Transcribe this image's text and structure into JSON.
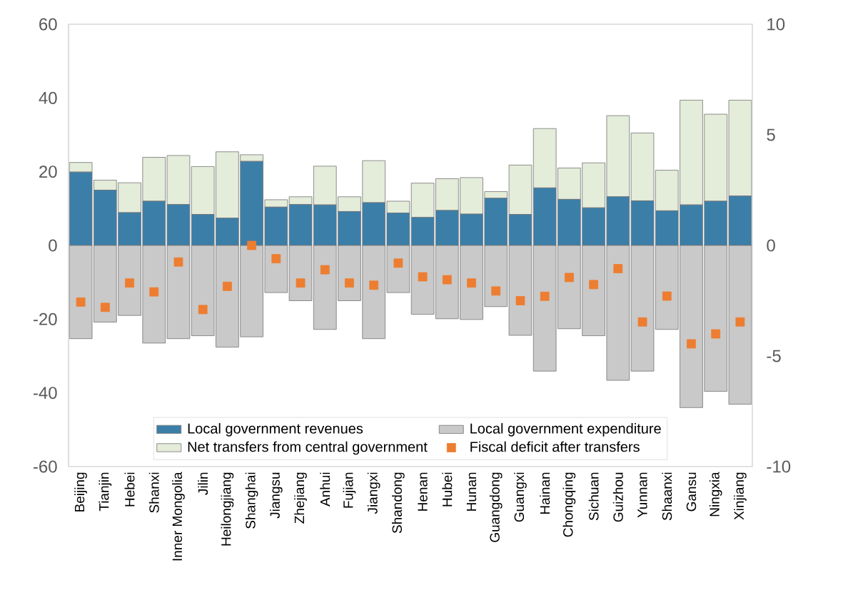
{
  "chart_data": {
    "type": "bar",
    "stacked": true,
    "categories": [
      "Beijing",
      "Tianjin",
      "Hebei",
      "Shanxi",
      "Inner Mongolia",
      "Jilin",
      "Heilongjiang",
      "Shanghai",
      "Jiangsu",
      "Zhejiang",
      "Anhui",
      "Fujian",
      "Jiangxi",
      "Shandong",
      "Henan",
      "Hubei",
      "Hunan",
      "Guangdong",
      "Guangxi",
      "Hainan",
      "Chongqing",
      "Sichuan",
      "Guizhou",
      "Yunnan",
      "Shaanxi",
      "Gansu",
      "Ningxia",
      "Xinjiang"
    ],
    "series": [
      {
        "name": "Local government revenues",
        "color": "#3b7fa9",
        "values": [
          19.9,
          15.0,
          8.9,
          12.0,
          11.1,
          8.4,
          7.4,
          22.8,
          10.4,
          11.1,
          11.0,
          9.2,
          11.6,
          8.8,
          7.6,
          9.5,
          8.5,
          12.8,
          8.4,
          15.6,
          12.5,
          10.2,
          13.2,
          12.1,
          9.4,
          11.0,
          12.0,
          13.4
        ]
      },
      {
        "name": "Local government expenditure",
        "color": "#c9c9c9",
        "values": [
          -25.3,
          -20.8,
          -19.0,
          -26.5,
          -25.3,
          -24.5,
          -27.6,
          -24.8,
          -12.8,
          -15.0,
          -22.8,
          -15.0,
          -25.3,
          -12.8,
          -18.7,
          -19.9,
          -20.1,
          -16.6,
          -24.4,
          -34.1,
          -22.6,
          -24.5,
          -36.6,
          -34.1,
          -22.8,
          -44.0,
          -39.6,
          -43.1
        ]
      },
      {
        "name": "Net transfers from central government",
        "color": "#e4ecda",
        "values": [
          2.6,
          2.7,
          8.1,
          11.9,
          13.3,
          13.0,
          18.0,
          1.8,
          2.0,
          2.1,
          10.5,
          4.0,
          11.4,
          3.2,
          9.3,
          8.6,
          9.9,
          1.8,
          13.4,
          16.1,
          8.5,
          12.2,
          22.0,
          18.4,
          11.0,
          28.4,
          23.6,
          26.0
        ]
      },
      {
        "name": "Fiscal deficit after transfers",
        "type": "scatter",
        "axis": "y2",
        "marker": "square",
        "color": "#ed7d31",
        "values": [
          -2.56,
          -2.8,
          -1.7,
          -2.1,
          -0.75,
          -2.9,
          -1.85,
          0.0,
          -0.6,
          -1.7,
          -1.1,
          -1.7,
          -1.8,
          -0.8,
          -1.42,
          -1.55,
          -1.7,
          -2.06,
          -2.5,
          -2.3,
          -1.45,
          -1.77,
          -1.05,
          -3.46,
          -2.29,
          -4.45,
          -4.0,
          -3.46
        ]
      }
    ],
    "ylim": [
      -60,
      60
    ],
    "yticks": [
      -60,
      -40,
      -20,
      0,
      20,
      40,
      60
    ],
    "y2lim": [
      -10,
      10
    ],
    "y2ticks": [
      -10,
      -5,
      0,
      5,
      10
    ],
    "legend": "bottom"
  }
}
